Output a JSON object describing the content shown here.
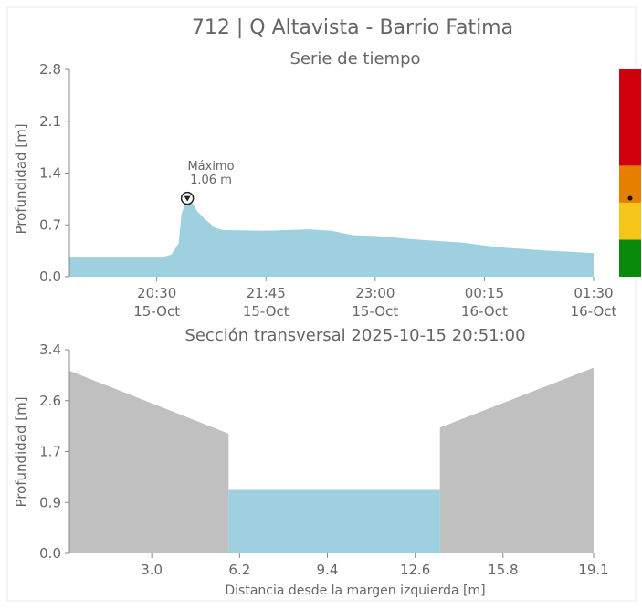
{
  "title": "712 | Q Altavista - Barrio Fatima",
  "colors": {
    "water": "#9fd0e0",
    "ground": "#c0c0c0",
    "text": "#666666",
    "level_red": "#d0000e",
    "level_orange": "#e67e00",
    "level_yellow": "#f5c518",
    "level_green": "#0a8a0a"
  },
  "chart_data": [
    {
      "type": "area",
      "title": "Serie de tiempo",
      "ylabel": "Profundidad [m]",
      "xlabel": "",
      "ylim": [
        0,
        2.8
      ],
      "yticks": [
        "0.0",
        "0.7",
        "1.4",
        "2.1",
        "2.8"
      ],
      "xticks": [
        {
          "time": "20:30",
          "date": "15-Oct"
        },
        {
          "time": "21:45",
          "date": "15-Oct"
        },
        {
          "time": "23:00",
          "date": "15-Oct"
        },
        {
          "time": "00:15",
          "date": "16-Oct"
        },
        {
          "time": "01:30",
          "date": "16-Oct"
        }
      ],
      "x_range": [
        "2025-10-15 19:30",
        "2025-10-16 01:30"
      ],
      "series": [
        {
          "points": [
            [
              "2025-10-15 19:30",
              0.27
            ],
            [
              "2025-10-15 20:25",
              0.27
            ],
            [
              "2025-10-15 20:35",
              0.27
            ],
            [
              "2025-10-15 20:40",
              0.3
            ],
            [
              "2025-10-15 20:45",
              0.45
            ],
            [
              "2025-10-15 20:47",
              0.85
            ],
            [
              "2025-10-15 20:51",
              1.06
            ],
            [
              "2025-10-15 20:55",
              0.98
            ],
            [
              "2025-10-15 20:58",
              0.88
            ],
            [
              "2025-10-15 21:02",
              0.8
            ],
            [
              "2025-10-15 21:06",
              0.73
            ],
            [
              "2025-10-15 21:09",
              0.67
            ],
            [
              "2025-10-15 21:15",
              0.63
            ],
            [
              "2025-10-15 21:45",
              0.62
            ],
            [
              "2025-10-15 22:15",
              0.64
            ],
            [
              "2025-10-15 22:30",
              0.62
            ],
            [
              "2025-10-15 22:40",
              0.58
            ],
            [
              "2025-10-15 22:45",
              0.56
            ],
            [
              "2025-10-15 23:00",
              0.55
            ],
            [
              "2025-10-15 23:30",
              0.5
            ],
            [
              "2025-10-16 00:00",
              0.46
            ],
            [
              "2025-10-16 00:15",
              0.42
            ],
            [
              "2025-10-16 00:30",
              0.39
            ],
            [
              "2025-10-16 01:00",
              0.35
            ],
            [
              "2025-10-16 01:30",
              0.32
            ]
          ]
        }
      ],
      "max_annotation": {
        "label": "Máximo",
        "value_text": "1.06 m",
        "time": "2025-10-15 20:51",
        "value": 1.06
      },
      "level_bar": {
        "segments": [
          {
            "color": "#0a8a0a",
            "from": 0.0,
            "to": 0.5
          },
          {
            "color": "#f5c518",
            "from": 0.5,
            "to": 1.0
          },
          {
            "color": "#e67e00",
            "from": 1.0,
            "to": 1.5
          },
          {
            "color": "#d0000e",
            "from": 1.5,
            "to": 2.8
          }
        ],
        "current_value": 1.06
      },
      "grid": false
    },
    {
      "type": "area",
      "title": "Sección transversal 2025-10-15 20:51:00",
      "xlabel": "Distancia desde la margen izquierda [m]",
      "ylabel": "Profundidad [m]",
      "xlim": [
        0,
        19.1
      ],
      "ylim": [
        0,
        3.4
      ],
      "xticks": [
        "3.0",
        "6.2",
        "9.4",
        "12.6",
        "15.8",
        "19.1"
      ],
      "xtick_values": [
        3.0,
        6.2,
        9.4,
        12.6,
        15.8,
        19.1
      ],
      "yticks": [
        "0.0",
        "0.9",
        "1.7",
        "2.6",
        "3.4"
      ],
      "ytick_values": [
        0.0,
        0.85,
        1.7,
        2.55,
        3.4
      ],
      "ground_profile": [
        [
          0,
          3.05
        ],
        [
          5.8,
          2.0
        ],
        [
          5.8,
          0
        ],
        [
          13.5,
          0
        ],
        [
          13.5,
          2.1
        ],
        [
          19.1,
          3.1
        ]
      ],
      "water_depth": 1.06,
      "water_x": [
        5.8,
        13.5
      ],
      "grid": false
    }
  ]
}
